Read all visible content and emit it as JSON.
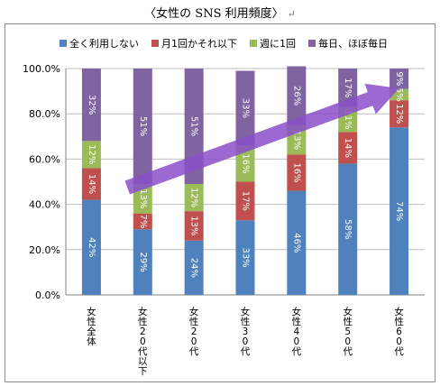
{
  "title": "〈女性の SNS 利用頻度〉",
  "title_mark": "↵",
  "colors": {
    "never": "#4f81bd",
    "monthly": "#c0504d",
    "weekly": "#9bbb59",
    "daily": "#8064a2",
    "arrow": "#8a4fc9"
  },
  "chart_data": {
    "type": "bar",
    "stacked": true,
    "percent": true,
    "categories": [
      "女性全体",
      "女性20代以下",
      "女性20代",
      "女性30代",
      "女性40代",
      "女性50代",
      "女性60代"
    ],
    "series": [
      {
        "name": "全く利用しない",
        "values": [
          42,
          29,
          24,
          33,
          46,
          58,
          74
        ],
        "labels": [
          "42%",
          "29%",
          "24%",
          "33%",
          "46%",
          "58%",
          "74%"
        ]
      },
      {
        "name": "月1回かそれ以下",
        "values": [
          14,
          7,
          13,
          17,
          16,
          14,
          12
        ],
        "labels": [
          "14%",
          "7%",
          "13%",
          "17%",
          "16%",
          "14%",
          "12%"
        ]
      },
      {
        "name": "週に1回",
        "values": [
          12,
          13,
          12,
          16,
          13,
          11,
          5
        ],
        "labels": [
          "12%",
          "13%",
          "12%",
          "16%",
          "13%",
          "11%",
          "5%"
        ]
      },
      {
        "name": "毎日、ほぼ毎日",
        "values": [
          32,
          51,
          51,
          33,
          26,
          17,
          9
        ],
        "labels": [
          "32%",
          "51%",
          "51%",
          "33%",
          "26%",
          "17%",
          "9%"
        ]
      }
    ],
    "yticks": [
      "0.0%",
      "20.0%",
      "40.0%",
      "60.0%",
      "80.0%",
      "100.0%"
    ],
    "ylim": [
      0,
      100
    ],
    "legend_position": "top",
    "gridlines": true,
    "annotation": "upward trend arrow"
  }
}
